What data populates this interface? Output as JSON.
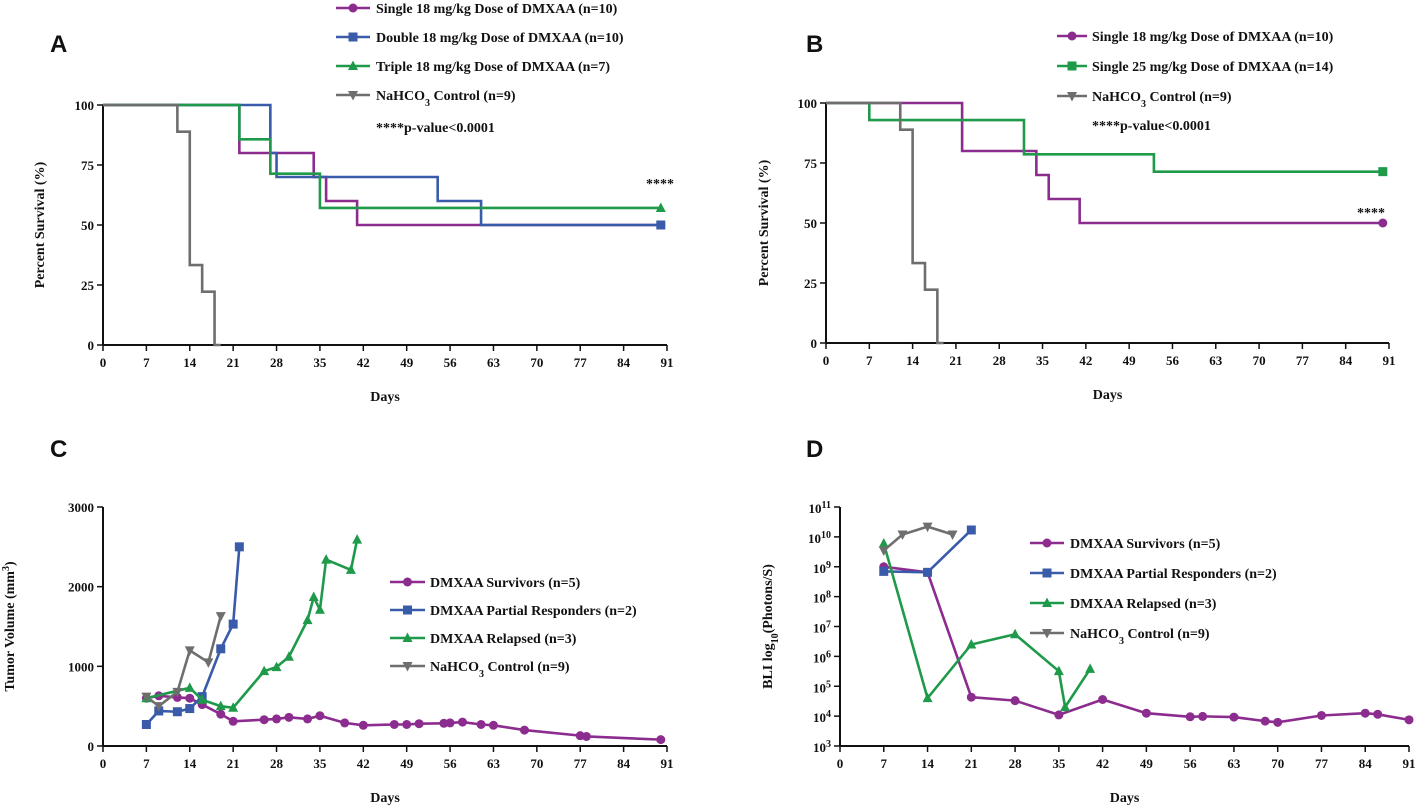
{
  "chart_data": [
    {
      "panel": "A",
      "type": "line",
      "step": true,
      "xlabel": "Days",
      "ylabel": "Percent Survival (%)",
      "xticks": [
        "0",
        "7",
        "14",
        "21",
        "28",
        "35",
        "42",
        "49",
        "56",
        "63",
        "70",
        "77",
        "84",
        "91"
      ],
      "yticks": [
        "0",
        "25",
        "50",
        "75",
        "100"
      ],
      "xlim": [
        0,
        91
      ],
      "ylim": [
        0,
        100
      ],
      "series": [
        {
          "name": "Single 18 mg/kg Dose of DMXAA (n=10)",
          "color": "#8B2C8E",
          "marker": "circle",
          "x": [
            0,
            22,
            34,
            36,
            41,
            90
          ],
          "y": [
            100,
            80,
            70,
            60,
            50,
            50
          ]
        },
        {
          "name": "Double 18 mg/kg Dose of DMXAA (n=10)",
          "color": "#3A5BAA",
          "marker": "square",
          "x": [
            0,
            27,
            28,
            54,
            61,
            90
          ],
          "y": [
            100,
            80,
            70,
            60,
            50,
            50
          ]
        },
        {
          "name": "Triple 18 mg/kg Dose of DMXAA (n=7)",
          "color": "#1E9A4A",
          "marker": "triangle",
          "x": [
            0,
            22,
            27,
            29,
            35,
            90
          ],
          "y": [
            100,
            85.7,
            71.4,
            71.4,
            57.1,
            57.1
          ]
        },
        {
          "name": "NaHCO3 Control (n=9)",
          "color": "#6E6E6E",
          "marker": "tri-down",
          "x": [
            0,
            12,
            14,
            16,
            18,
            19
          ],
          "y": [
            100,
            88.9,
            33.3,
            22.2,
            0,
            0
          ]
        }
      ],
      "legend_labels": [
        [
          "Single 18 mg/kg Dose of DMXAA (n=10)"
        ],
        [
          "Double 18 mg/kg Dose of DMXAA (n=10)"
        ],
        [
          "Triple 18 mg/kg Dose of DMXAA (n=7)"
        ],
        [
          "NaHCO",
          "3",
          " Control (n=9)"
        ]
      ],
      "annotation": "****p-value<0.0001",
      "stars": "****"
    },
    {
      "panel": "B",
      "type": "line",
      "step": true,
      "xlabel": "Days",
      "ylabel": "Percent Survival (%)",
      "xticks": [
        "0",
        "7",
        "14",
        "21",
        "28",
        "35",
        "42",
        "49",
        "56",
        "63",
        "70",
        "77",
        "84",
        "91"
      ],
      "yticks": [
        "0",
        "25",
        "50",
        "75",
        "100"
      ],
      "xlim": [
        0,
        91
      ],
      "ylim": [
        0,
        100
      ],
      "series": [
        {
          "name": "Single 18 mg/kg Dose of DMXAA (n=10)",
          "color": "#8B2C8E",
          "marker": "circle",
          "x": [
            0,
            22,
            34,
            36,
            41,
            90
          ],
          "y": [
            100,
            80,
            70,
            60,
            50,
            50
          ]
        },
        {
          "name": "Single 25 mg/kg Dose of DMXAA (n=14)",
          "color": "#1E9A4A",
          "marker": "square",
          "x": [
            0,
            7,
            32,
            53,
            90
          ],
          "y": [
            100,
            92.9,
            78.6,
            71.4,
            71.4
          ]
        },
        {
          "name": "NaHCO3 Control (n=9)",
          "color": "#6E6E6E",
          "marker": "tri-down",
          "x": [
            0,
            12,
            14,
            16,
            18,
            19
          ],
          "y": [
            100,
            88.9,
            33.3,
            22.2,
            0,
            0
          ]
        }
      ],
      "legend_labels": [
        [
          "Single 18 mg/kg Dose of DMXAA (n=10)"
        ],
        [
          "Single 25 mg/kg Dose of DMXAA (n=14)"
        ],
        [
          "NaHCO",
          "3",
          " Control (n=9)"
        ]
      ],
      "annotation": "****p-value<0.0001",
      "stars": "****"
    },
    {
      "panel": "C",
      "type": "line",
      "xlabel": "Days",
      "ylabel": [
        "Tumor Volume (mm",
        "3",
        ")"
      ],
      "xticks": [
        "0",
        "7",
        "14",
        "21",
        "28",
        "35",
        "42",
        "49",
        "56",
        "63",
        "70",
        "77",
        "84",
        "91"
      ],
      "yticks": [
        "0",
        "1000",
        "2000",
        "3000"
      ],
      "xlim": [
        0,
        91
      ],
      "ylim": [
        0,
        3000
      ],
      "series": [
        {
          "name": "DMXAA Survivors (n=5)",
          "color": "#8B2C8E",
          "marker": "circle",
          "x": [
            7,
            9,
            12,
            14,
            16,
            19,
            21,
            26,
            28,
            30,
            33,
            35,
            39,
            42,
            47,
            49,
            51,
            55,
            56,
            58,
            61,
            63,
            68,
            77,
            78,
            90
          ],
          "y": [
            600,
            630,
            610,
            600,
            520,
            400,
            310,
            330,
            340,
            360,
            340,
            380,
            290,
            260,
            270,
            270,
            280,
            285,
            290,
            300,
            270,
            260,
            200,
            130,
            120,
            80
          ]
        },
        {
          "name": "DMXAA Partial Responders (n=2)",
          "color": "#3A5BAA",
          "marker": "square",
          "x": [
            7,
            9,
            12,
            14,
            16,
            19,
            21,
            22
          ],
          "y": [
            270,
            440,
            430,
            470,
            620,
            1220,
            1530,
            2500
          ]
        },
        {
          "name": "DMXAA Relapsed (n=3)",
          "color": "#1E9A4A",
          "marker": "triangle",
          "x": [
            7,
            14,
            16,
            19,
            21,
            26,
            28,
            30,
            33,
            34,
            35,
            36,
            40,
            41
          ],
          "y": [
            600,
            730,
            580,
            500,
            480,
            940,
            990,
            1120,
            1580,
            1870,
            1710,
            2340,
            2210,
            2590
          ]
        },
        {
          "name": "NaHCO3 Control (n=9)",
          "color": "#6E6E6E",
          "marker": "tri-down",
          "x": [
            7,
            9,
            12,
            14,
            17,
            19
          ],
          "y": [
            620,
            500,
            680,
            1200,
            1050,
            1630
          ]
        }
      ],
      "legend_labels": [
        [
          "DMXAA Survivors (n=5)"
        ],
        [
          "DMXAA Partial Responders (n=2)"
        ],
        [
          "DMXAA Relapsed (n=3)"
        ],
        [
          "NaHCO",
          "3",
          " Control (n=9)"
        ]
      ]
    },
    {
      "panel": "D",
      "type": "line",
      "yscale": "log",
      "xlabel": "Days",
      "ylabel": [
        "BLI  log",
        "10",
        "(Photons/S)"
      ],
      "xticks": [
        "0",
        "7",
        "14",
        "21",
        "28",
        "35",
        "42",
        "49",
        "56",
        "63",
        "70",
        "77",
        "84",
        "91"
      ],
      "yticks": [
        [
          "10",
          "3"
        ],
        [
          "10",
          "4"
        ],
        [
          "10",
          "5"
        ],
        [
          "10",
          "6"
        ],
        [
          "10",
          "7"
        ],
        [
          "10",
          "8"
        ],
        [
          "10",
          "9"
        ],
        [
          "10",
          "10"
        ],
        [
          "10",
          "11"
        ]
      ],
      "xlim": [
        0,
        91
      ],
      "ylim": [
        1000,
        100000000000
      ],
      "series": [
        {
          "name": "DMXAA Survivors (n=5)",
          "color": "#8B2C8E",
          "marker": "circle",
          "x": [
            7,
            14,
            21,
            28,
            35,
            42,
            49,
            56,
            58,
            63,
            68,
            70,
            77,
            84,
            86,
            91
          ],
          "y": [
            1000000000,
            650000000,
            43000,
            33000,
            11000,
            36000,
            12500,
            9500,
            9800,
            9300,
            6800,
            6200,
            10500,
            12500,
            11500,
            7500
          ]
        },
        {
          "name": "DMXAA Partial Responders (n=2)",
          "color": "#3A5BAA",
          "marker": "square",
          "x": [
            7,
            14,
            21
          ],
          "y": [
            700000000,
            650000000,
            17000000000
          ]
        },
        {
          "name": "DMXAA Relapsed (n=3)",
          "color": "#1E9A4A",
          "marker": "triangle",
          "x": [
            7,
            14,
            21,
            28,
            35,
            36,
            40
          ],
          "y": [
            6000000000,
            40000,
            2500000,
            5500000,
            320000,
            20000,
            380000
          ]
        },
        {
          "name": "NaHCO3 Control (n=9)",
          "color": "#6E6E6E",
          "marker": "tri-down",
          "x": [
            7,
            10,
            14,
            18
          ],
          "y": [
            3500000000,
            12000000000,
            22000000000,
            12000000000
          ]
        }
      ],
      "legend_labels": [
        [
          "DMXAA Survivors (n=5)"
        ],
        [
          "DMXAA Partial Responders (n=2)"
        ],
        [
          "DMXAA Relapsed (n=3)"
        ],
        [
          "NaHCO",
          "3",
          " Control (n=9)"
        ]
      ]
    }
  ]
}
